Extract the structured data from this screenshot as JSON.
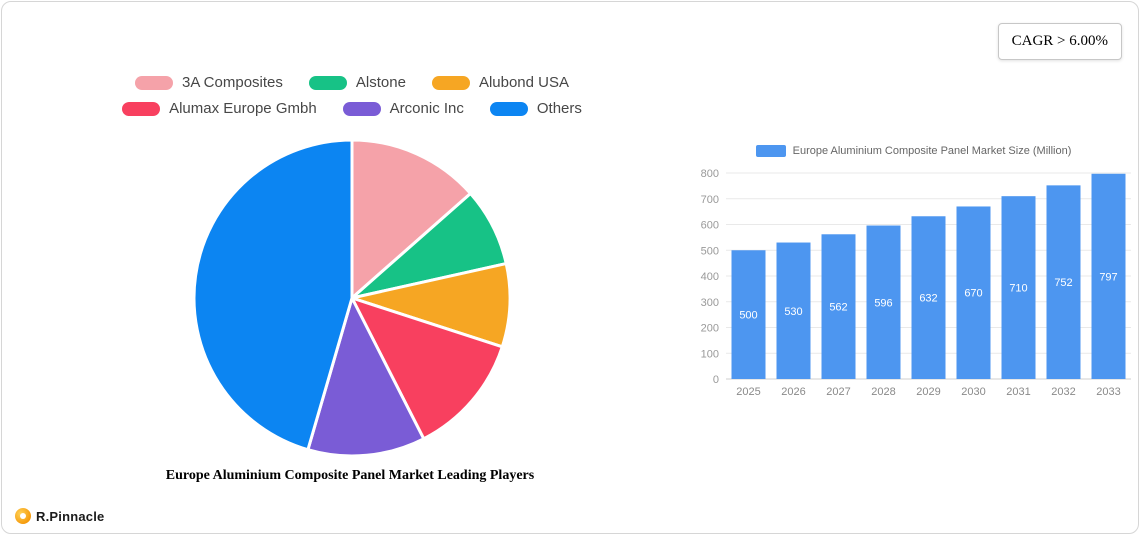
{
  "cagr_label": "CAGR > 6.00%",
  "logo_text": "R.Pinnacle",
  "colors": {
    "pie_blue": "#0C85F2",
    "bar_blue": "#4D96F0",
    "logo_orange": "#F59A0C"
  },
  "chart_data": [
    {
      "type": "pie",
      "title": "Europe Aluminium Composite Panel Market Leading Players",
      "labels": [
        "3A Composites",
        "Alstone",
        "Alubond USA",
        "Alumax Europe Gmbh",
        "Arconic Inc",
        "Others"
      ],
      "values": [
        13.5,
        8,
        8.5,
        12.5,
        12,
        45.5
      ],
      "colors": [
        "#F5A2A9",
        "#17C286",
        "#F6A623",
        "#F8405F",
        "#7A5CD6",
        "#0C85F2"
      ],
      "legend_position": "top",
      "start_angle_deg": -90,
      "direction": "clockwise"
    },
    {
      "type": "bar",
      "title": "Europe Aluminium Composite Panel Market Size (Million)",
      "categories": [
        "2025",
        "2026",
        "2027",
        "2028",
        "2029",
        "2030",
        "2031",
        "2032",
        "2033"
      ],
      "values": [
        500,
        530,
        562,
        596,
        632,
        670,
        710,
        752,
        797
      ],
      "ylim": [
        0,
        800
      ],
      "ytick_step": 100,
      "bar_color": "#4D96F0",
      "grid": true,
      "legend_position": "top",
      "value_label_position": "inside-middle",
      "value_label_color": "#ffffff"
    }
  ]
}
